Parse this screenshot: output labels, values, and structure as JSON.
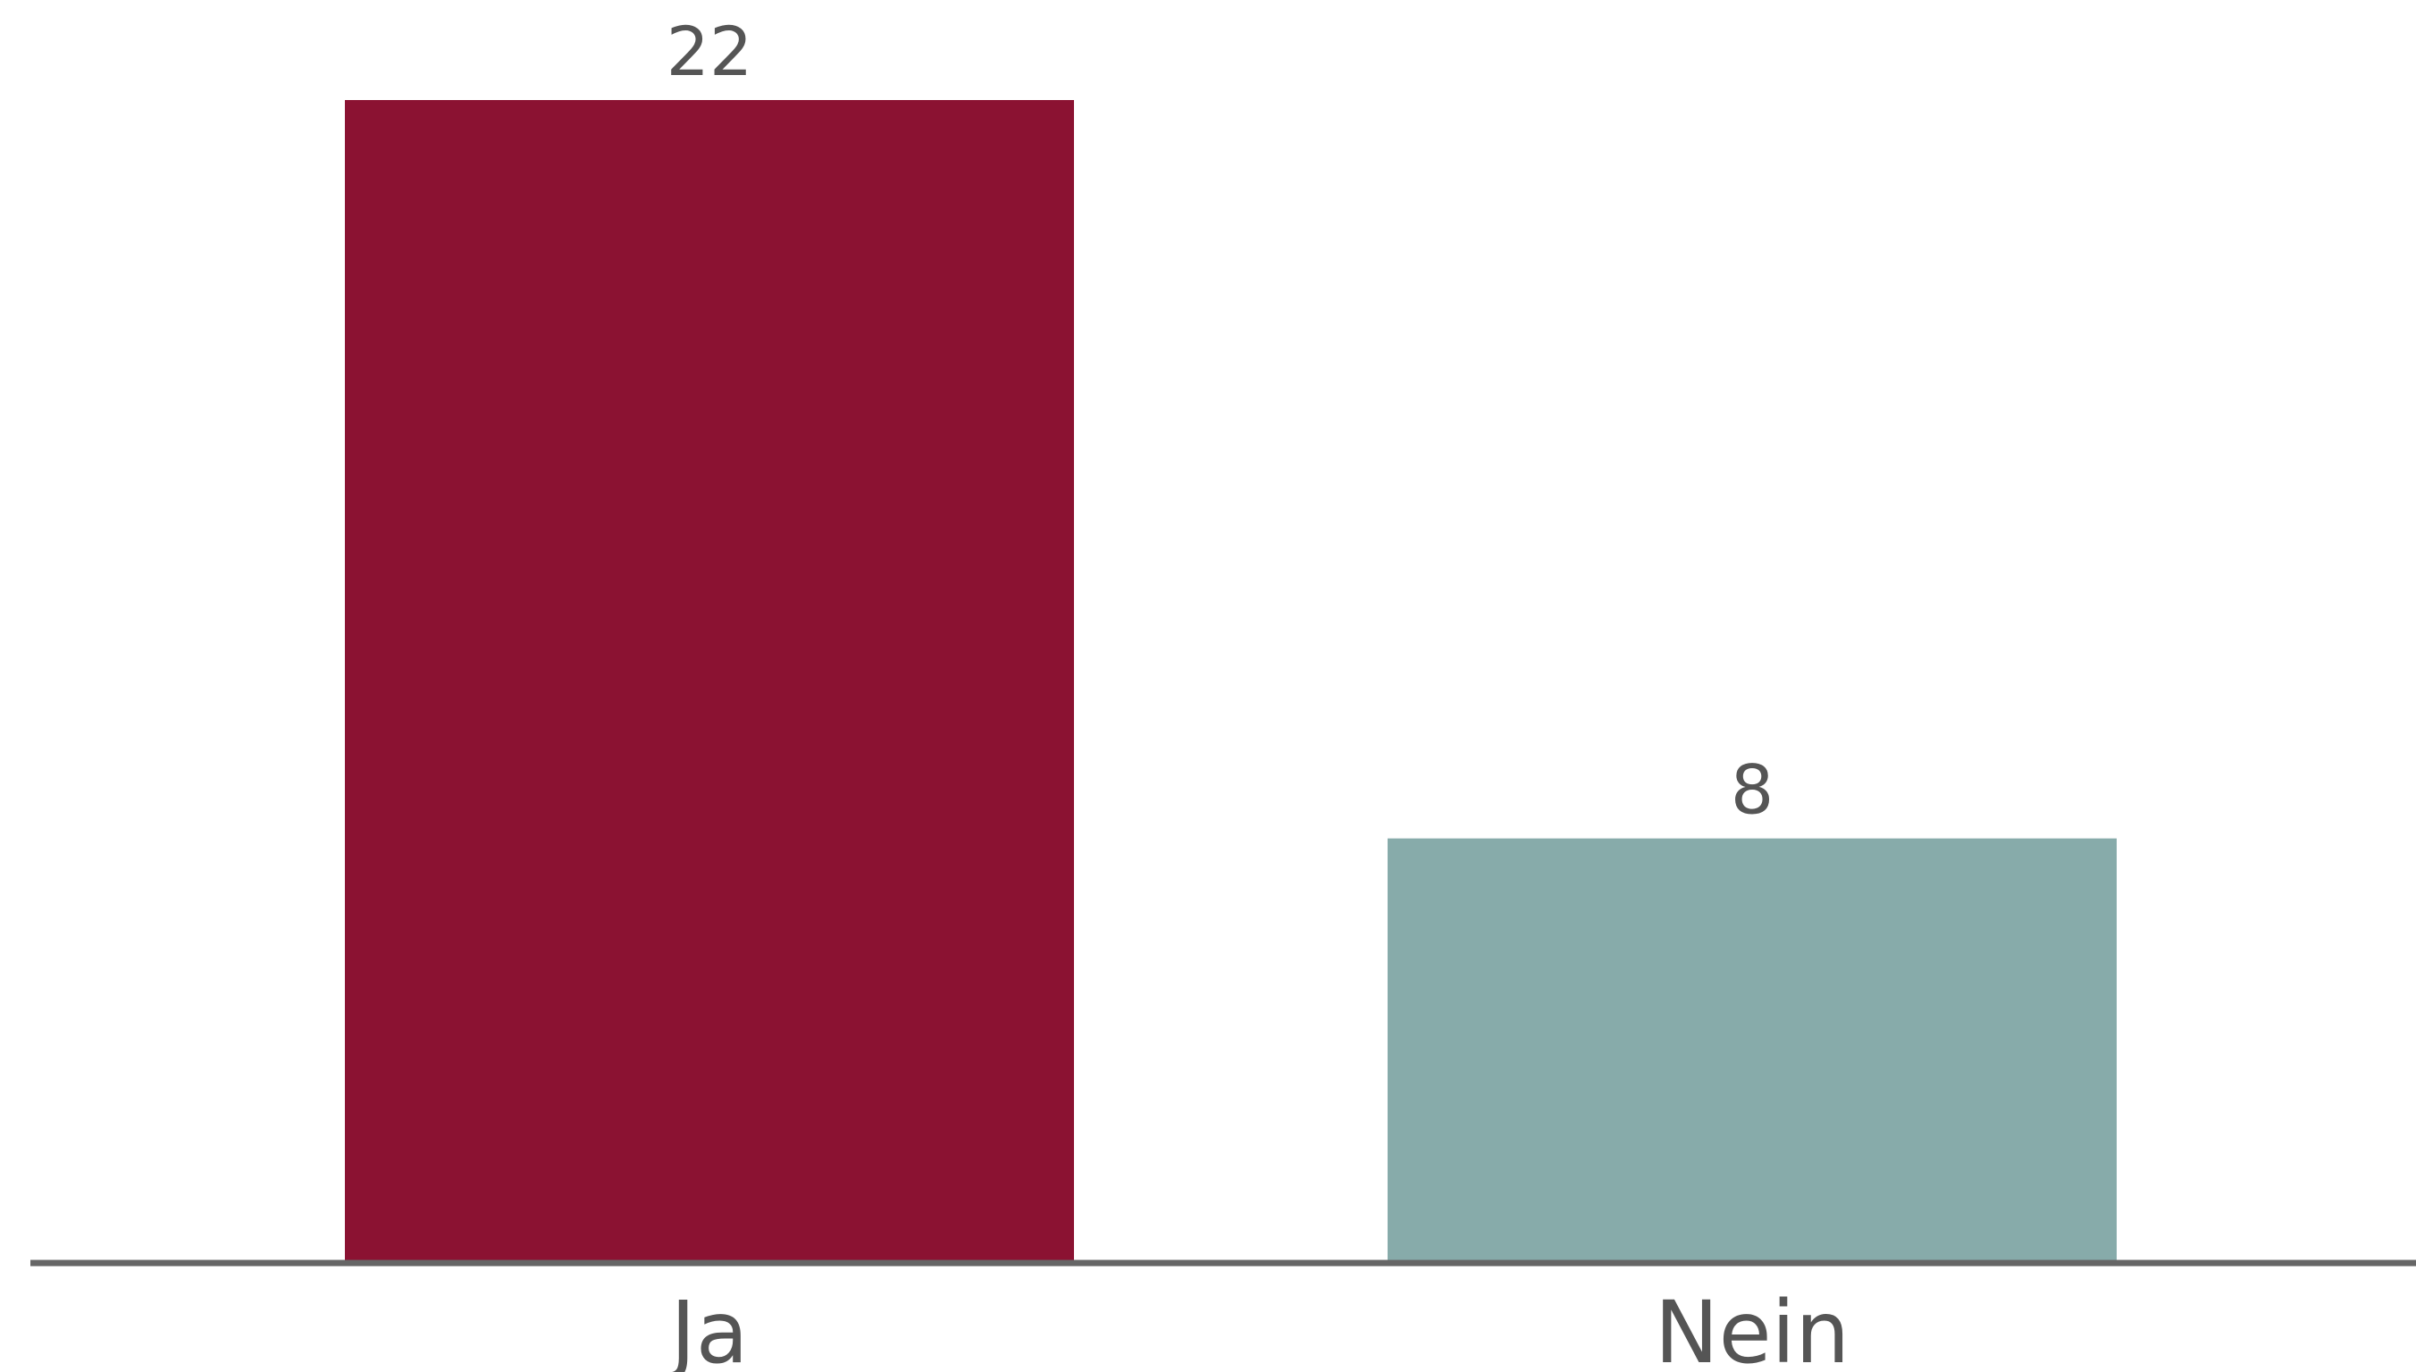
{
  "chart_data": {
    "type": "bar",
    "categories": [
      "Ja",
      "Nein"
    ],
    "values": [
      22,
      8
    ],
    "colors": [
      "#8B1232",
      "#87ABAA"
    ],
    "axis_color": "#666666",
    "label_color": "#555555",
    "title": "",
    "xlabel": "",
    "ylabel": "",
    "ylim": [
      0,
      22
    ],
    "grid": false,
    "legend": "none",
    "data_labels": true
  }
}
